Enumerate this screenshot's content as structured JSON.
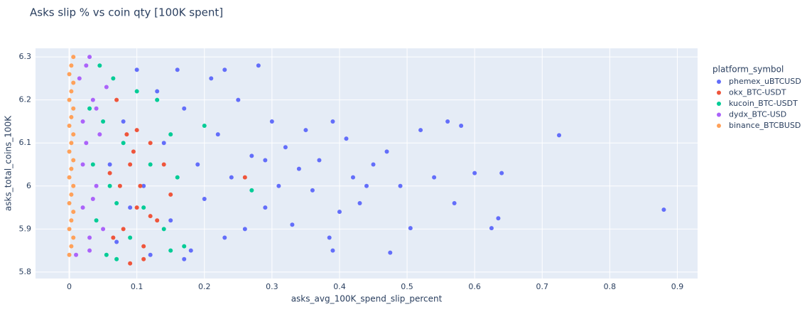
{
  "chart_data": {
    "type": "scatter",
    "title": "Asks slip % vs coin qty [100K spent]",
    "x_label": "asks_avg_100K_spend_slip_percent",
    "y_label": "asks_total_coins_100K",
    "legend_title": "platform_symbol",
    "legend_position": "right",
    "grid": true,
    "xlim": [
      -0.05,
      0.93
    ],
    "ylim": [
      5.785,
      6.32
    ],
    "xticks": [
      0,
      0.1,
      0.2,
      0.3,
      0.4,
      0.5,
      0.6,
      0.7,
      0.8,
      0.9
    ],
    "yticks": [
      5.8,
      5.9,
      6,
      6.1,
      6.2,
      6.3
    ],
    "series": [
      {
        "name": "phemex_uBTCUSD",
        "color": "#636efa",
        "x": [
          0.88,
          0.725,
          0.635,
          0.625,
          0.58,
          0.56,
          0.54,
          0.52,
          0.505,
          0.49,
          0.47,
          0.45,
          0.43,
          0.42,
          0.41,
          0.4,
          0.39,
          0.385,
          0.37,
          0.36,
          0.35,
          0.34,
          0.33,
          0.32,
          0.31,
          0.3,
          0.29,
          0.28,
          0.27,
          0.26,
          0.25,
          0.24,
          0.23,
          0.22,
          0.21,
          0.2,
          0.19,
          0.18,
          0.17,
          0.16,
          0.15,
          0.14,
          0.13,
          0.12,
          0.11,
          0.1,
          0.09,
          0.08,
          0.07,
          0.06,
          0.475,
          0.44,
          0.57,
          0.64,
          0.6,
          0.39,
          0.29,
          0.23,
          0.17
        ],
        "y": [
          5.945,
          6.118,
          5.925,
          5.902,
          6.14,
          6.15,
          6.02,
          6.13,
          5.902,
          6.0,
          6.08,
          6.05,
          5.96,
          6.02,
          6.11,
          5.94,
          6.15,
          5.88,
          6.06,
          5.99,
          6.13,
          6.04,
          5.91,
          6.09,
          6.0,
          6.15,
          5.95,
          6.28,
          6.07,
          5.9,
          6.2,
          6.02,
          5.88,
          6.12,
          6.25,
          5.97,
          6.05,
          5.85,
          6.18,
          6.27,
          5.92,
          6.1,
          6.22,
          5.84,
          6.0,
          6.27,
          5.95,
          6.15,
          5.87,
          6.05,
          5.845,
          6.0,
          5.96,
          6.03,
          6.03,
          5.85,
          6.06,
          6.27,
          5.83
        ]
      },
      {
        "name": "okx_BTC-USDT",
        "color": "#EF553B",
        "x": [
          0.26,
          0.15,
          0.14,
          0.13,
          0.12,
          0.11,
          0.1,
          0.1,
          0.09,
          0.09,
          0.085,
          0.08,
          0.075,
          0.07,
          0.065,
          0.11,
          0.12,
          0.095,
          0.105,
          0.06
        ],
        "y": [
          6.02,
          5.98,
          6.05,
          5.92,
          6.1,
          5.86,
          6.13,
          5.95,
          6.05,
          5.82,
          6.12,
          5.9,
          6.0,
          6.2,
          5.88,
          5.83,
          5.93,
          6.08,
          6.0,
          6.03
        ]
      },
      {
        "name": "kucoin_BTC-USDT",
        "color": "#00cc96",
        "x": [
          0.27,
          0.2,
          0.17,
          0.16,
          0.15,
          0.14,
          0.13,
          0.12,
          0.11,
          0.1,
          0.09,
          0.08,
          0.07,
          0.065,
          0.06,
          0.055,
          0.05,
          0.045,
          0.04,
          0.035,
          0.15,
          0.07,
          0.03
        ],
        "y": [
          5.99,
          6.14,
          5.86,
          6.02,
          6.12,
          5.9,
          6.2,
          6.05,
          5.95,
          6.22,
          5.88,
          6.1,
          5.96,
          6.25,
          6.0,
          5.84,
          6.15,
          6.28,
          5.92,
          6.05,
          5.85,
          5.83,
          6.18
        ]
      },
      {
        "name": "dydx_BTC-USD",
        "color": "#ab63fa",
        "x": [
          0.03,
          0.025,
          0.02,
          0.03,
          0.035,
          0.04,
          0.015,
          0.045,
          0.05,
          0.02,
          0.03,
          0.025,
          0.01,
          0.04,
          0.035,
          0.055,
          0.02
        ],
        "y": [
          6.3,
          6.1,
          5.95,
          5.85,
          6.2,
          6.0,
          6.25,
          6.12,
          5.9,
          6.05,
          5.88,
          6.28,
          5.84,
          6.18,
          5.97,
          6.23,
          6.15
        ]
      },
      {
        "name": "binance_BTCBUSD",
        "color": "#FFA15A",
        "x": [
          0,
          0.003,
          0.006,
          0,
          0.003,
          0.006,
          0,
          0.003,
          0.006,
          0,
          0.003,
          0.006,
          0,
          0.003,
          0.006,
          0,
          0.003,
          0.006,
          0,
          0.003,
          0.006,
          0,
          0.003,
          0.006
        ],
        "y": [
          5.84,
          5.86,
          5.88,
          5.9,
          5.92,
          5.94,
          5.96,
          5.98,
          6.0,
          6.02,
          6.04,
          6.06,
          6.08,
          6.1,
          6.12,
          6.14,
          6.16,
          6.18,
          6.2,
          6.22,
          6.24,
          6.26,
          6.28,
          6.3
        ]
      }
    ]
  }
}
